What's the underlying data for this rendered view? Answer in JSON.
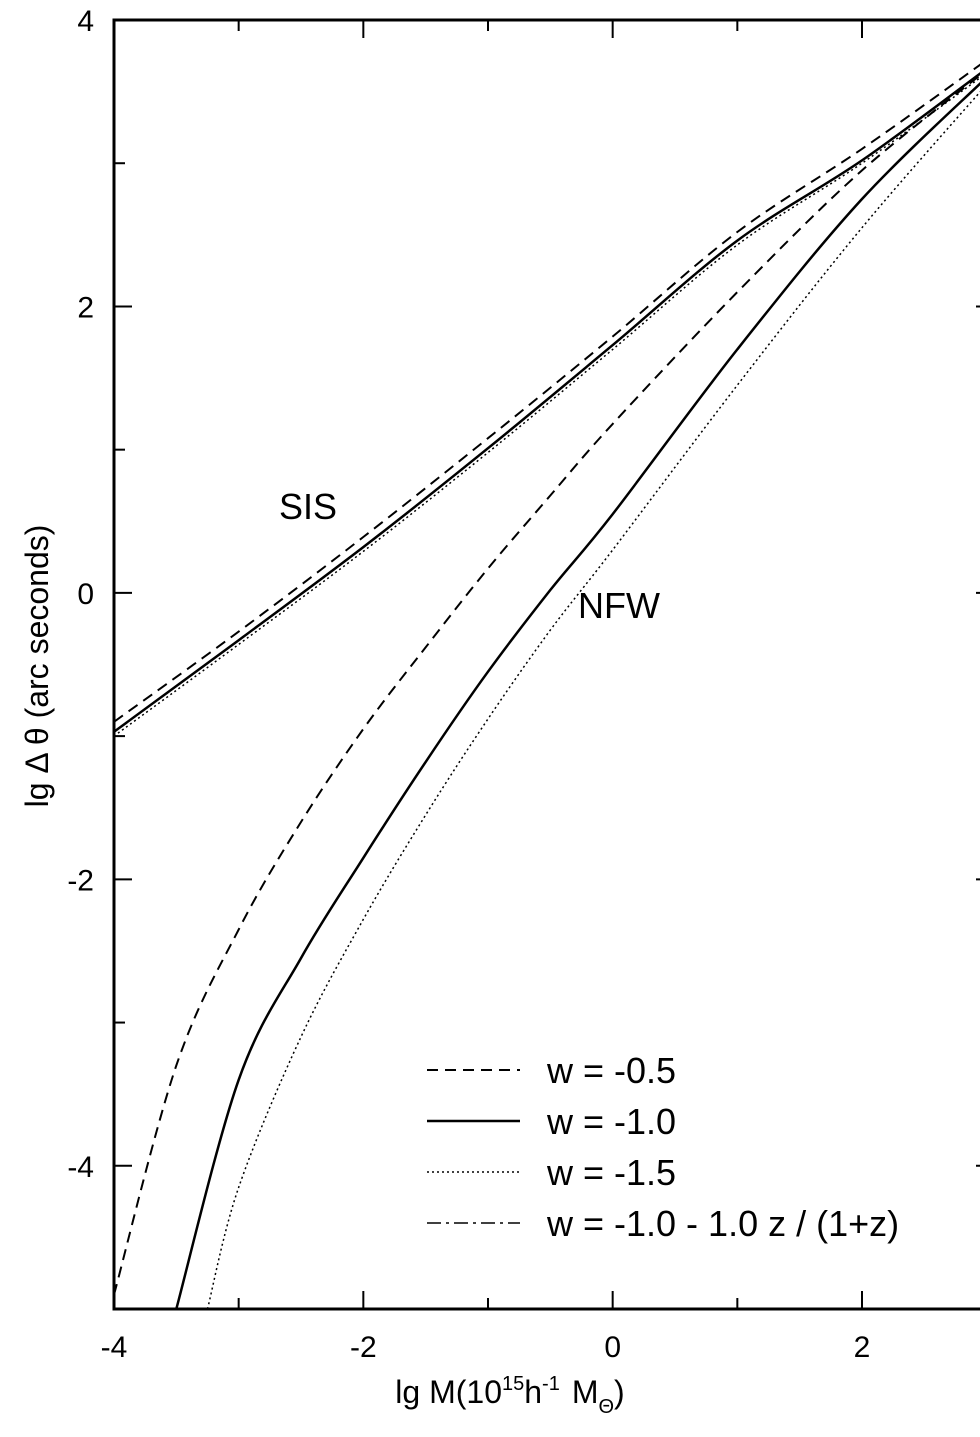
{
  "chart_data": {
    "type": "line",
    "xlabel": {
      "base": "lg M(10",
      "exp1": "15",
      "mid": "h",
      "exp2": "-1",
      "m": "M",
      "sub": "Θ",
      "close": ")"
    },
    "ylabel": "lg Δ θ (arc seconds)",
    "xlim": [
      -4,
      3
    ],
    "ylim": [
      -5,
      4
    ],
    "x_ticks": [
      -4,
      -2,
      0,
      2
    ],
    "x_tick_labels": [
      "-4",
      "-2",
      "0",
      "2"
    ],
    "y_ticks": [
      -4,
      -2,
      0,
      2,
      4
    ],
    "y_tick_labels": [
      "-4",
      "-2",
      "0",
      "2",
      "4"
    ],
    "annotations": [
      {
        "text": "SIS",
        "x": -2.7,
        "y": 0.55
      },
      {
        "text": "NFW",
        "x": -0.25,
        "y": -0.2
      }
    ],
    "legend": {
      "position": "bottom-right",
      "entries": [
        {
          "label": "w = -0.5",
          "style": "dashed"
        },
        {
          "label": "w = -1.0",
          "style": "solid"
        },
        {
          "label": "w = -1.5",
          "style": "dotted"
        },
        {
          "label": "w = -1.0 - 1.0 z / (1+z)",
          "style": "dashdot"
        }
      ]
    },
    "series": [
      {
        "group": "SIS",
        "style": "dashed",
        "points": [
          [
            -4,
            -0.9
          ],
          [
            -3,
            -0.27
          ],
          [
            -2,
            0.39
          ],
          [
            -1,
            1.08
          ],
          [
            0,
            1.79
          ],
          [
            1,
            2.52
          ],
          [
            2,
            3.1
          ],
          [
            3,
            3.72
          ]
        ]
      },
      {
        "group": "SIS",
        "style": "solid",
        "points": [
          [
            -4,
            -0.97
          ],
          [
            -3,
            -0.33
          ],
          [
            -2,
            0.32
          ],
          [
            -1,
            1.01
          ],
          [
            0,
            1.73
          ],
          [
            1,
            2.46
          ],
          [
            2,
            3.02
          ],
          [
            3,
            3.66
          ]
        ]
      },
      {
        "group": "SIS",
        "style": "dotted",
        "points": [
          [
            -4,
            -1.0
          ],
          [
            -3,
            -0.36
          ],
          [
            -2,
            0.29
          ],
          [
            -1,
            0.98
          ],
          [
            0,
            1.7
          ],
          [
            1,
            2.43
          ],
          [
            2,
            3.0
          ],
          [
            3,
            3.63
          ]
        ]
      },
      {
        "group": "NFW",
        "style": "dashed",
        "points": [
          [
            -4,
            -4.9
          ],
          [
            -3.5,
            -3.3
          ],
          [
            -3,
            -2.35
          ],
          [
            -2.5,
            -1.6
          ],
          [
            -2,
            -0.95
          ],
          [
            -1.5,
            -0.38
          ],
          [
            -1,
            0.17
          ],
          [
            -0.5,
            0.68
          ],
          [
            0,
            1.18
          ],
          [
            1,
            2.1
          ],
          [
            2,
            2.95
          ],
          [
            3,
            3.65
          ]
        ]
      },
      {
        "group": "NFW",
        "style": "solid",
        "points": [
          [
            -3.5,
            -5.0
          ],
          [
            -3,
            -3.4
          ],
          [
            -2.5,
            -2.55
          ],
          [
            -2,
            -1.85
          ],
          [
            -1.5,
            -1.18
          ],
          [
            -1,
            -0.55
          ],
          [
            -0.5,
            0.02
          ],
          [
            0,
            0.55
          ],
          [
            1,
            1.7
          ],
          [
            2,
            2.75
          ],
          [
            3,
            3.6
          ]
        ]
      },
      {
        "group": "NFW",
        "style": "dotted",
        "points": [
          [
            -3.25,
            -5.0
          ],
          [
            -3,
            -4.15
          ],
          [
            -2.5,
            -3.1
          ],
          [
            -2,
            -2.28
          ],
          [
            -1.5,
            -1.55
          ],
          [
            -1,
            -0.88
          ],
          [
            -0.5,
            -0.26
          ],
          [
            0,
            0.3
          ],
          [
            1,
            1.45
          ],
          [
            2,
            2.55
          ],
          [
            3,
            3.55
          ]
        ]
      }
    ]
  }
}
